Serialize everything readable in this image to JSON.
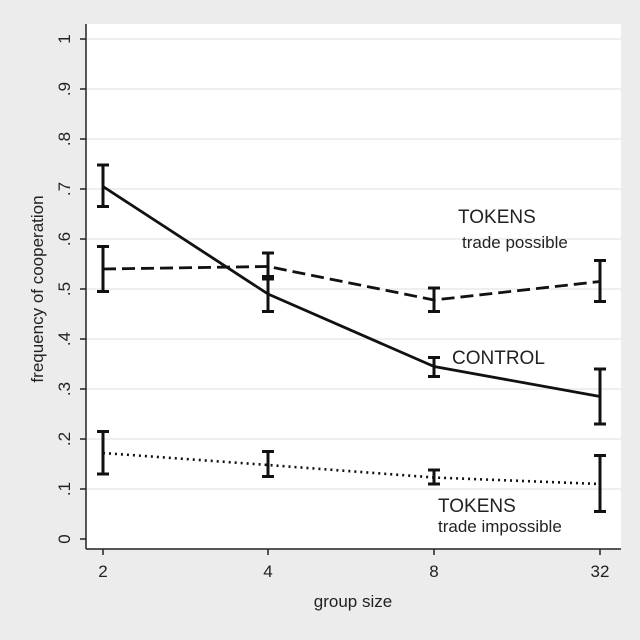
{
  "chart_data": {
    "type": "line",
    "xlabel": "group size",
    "ylabel": "frequency of cooperation",
    "categories": [
      "2",
      "4",
      "8",
      "32"
    ],
    "ylim": [
      0,
      1
    ],
    "yticks": [
      "0",
      ".1",
      ".2",
      ".3",
      ".4",
      ".5",
      ".6",
      ".7",
      ".8",
      ".9",
      "1"
    ],
    "grid": true,
    "series": [
      {
        "name": "CONTROL",
        "label_main": "CONTROL",
        "label_sub": "",
        "style": "solid",
        "values": [
          0.705,
          0.49,
          0.345,
          0.285
        ],
        "error_low": [
          0.665,
          0.455,
          0.325,
          0.23
        ],
        "error_high": [
          0.748,
          0.525,
          0.363,
          0.34
        ]
      },
      {
        "name": "TOKENS trade possible",
        "label_main": "TOKENS",
        "label_sub": "trade possible",
        "style": "dashed",
        "values": [
          0.54,
          0.545,
          0.478,
          0.515
        ],
        "error_low": [
          0.495,
          0.52,
          0.455,
          0.475
        ],
        "error_high": [
          0.585,
          0.572,
          0.502,
          0.557
        ]
      },
      {
        "name": "TOKENS trade impossible",
        "label_main": "TOKENS",
        "label_sub": "trade impossible",
        "style": "dotted",
        "values": [
          0.172,
          0.148,
          0.123,
          0.11
        ],
        "error_low": [
          0.13,
          0.125,
          0.11,
          0.055
        ],
        "error_high": [
          0.215,
          0.175,
          0.138,
          0.167
        ]
      }
    ]
  }
}
